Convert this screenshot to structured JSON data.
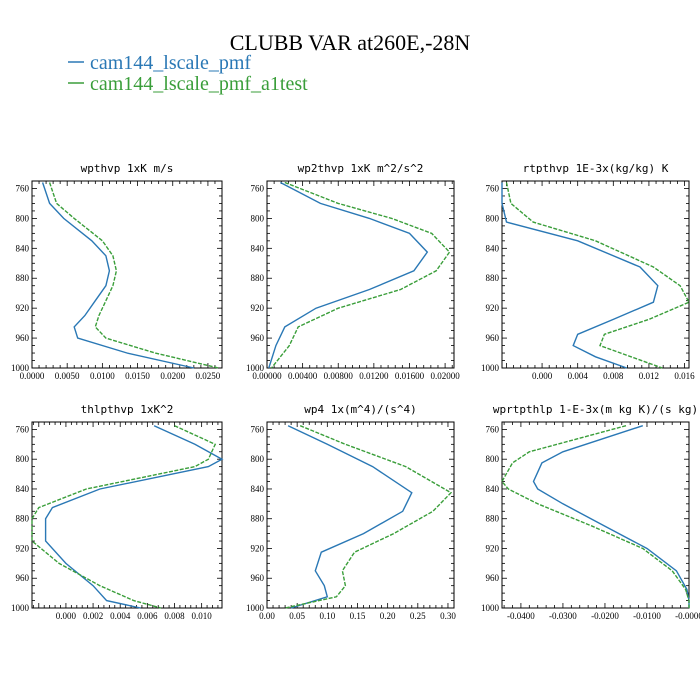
{
  "figure": {
    "title": "CLUBB VAR at260E,-28N",
    "legend": [
      {
        "label": "cam144_lscale_pmf",
        "color": "#2a78b5"
      },
      {
        "label": "cam144_lscale_pmf_a1test",
        "color": "#3a9e3a"
      }
    ]
  },
  "chart_data": [
    {
      "type": "line",
      "title": "wpthvp  1xK m/s",
      "xlim": [
        0,
        0.027
      ],
      "ylim": [
        1000,
        750
      ],
      "y_inverted": true,
      "xticks": [
        "0.0000",
        "0.0050",
        "0.0100",
        "0.0150",
        "0.0200",
        "0.0250"
      ],
      "xtick_values": [
        0,
        0.005,
        0.01,
        0.015,
        0.02,
        0.025
      ],
      "yticks": [
        760,
        800,
        840,
        880,
        920,
        960,
        1000
      ],
      "y": [
        752,
        780,
        800,
        830,
        850,
        870,
        890,
        910,
        930,
        945,
        960,
        980,
        1000
      ],
      "series": [
        {
          "values": [
            0.0015,
            0.0025,
            0.0045,
            0.0085,
            0.0105,
            0.011,
            0.0105,
            0.009,
            0.0075,
            0.006,
            0.0065,
            0.0135,
            0.023
          ]
        },
        {
          "values": [
            0.0025,
            0.0035,
            0.006,
            0.01,
            0.0115,
            0.012,
            0.0115,
            0.0105,
            0.0095,
            0.009,
            0.0105,
            0.0175,
            0.0265
          ]
        }
      ]
    },
    {
      "type": "line",
      "title": "wp2thvp  1xK m^2/s^2",
      "xlim": [
        0,
        0.021
      ],
      "ylim": [
        1000,
        750
      ],
      "y_inverted": true,
      "xticks": [
        "0.00000",
        "0.00400",
        "0.00800",
        "0.01200",
        "0.01600",
        "0.02000"
      ],
      "xtick_values": [
        0,
        0.004,
        0.008,
        0.012,
        0.016,
        0.02
      ],
      "yticks": [
        760,
        800,
        840,
        880,
        920,
        960,
        1000
      ],
      "y": [
        752,
        780,
        800,
        820,
        845,
        870,
        895,
        920,
        945,
        970,
        1000
      ],
      "series": [
        {
          "values": [
            0.0015,
            0.006,
            0.0115,
            0.016,
            0.018,
            0.0165,
            0.0115,
            0.0055,
            0.002,
            0.001,
            0.0002
          ]
        },
        {
          "values": [
            0.002,
            0.008,
            0.014,
            0.0185,
            0.0205,
            0.019,
            0.015,
            0.008,
            0.0035,
            0.0025,
            0.0005
          ]
        }
      ]
    },
    {
      "type": "line",
      "title": "rtpthvp  1E-3x(kg/kg) K",
      "xlim": [
        -0.0045,
        0.0165
      ],
      "ylim": [
        1000,
        750
      ],
      "y_inverted": true,
      "xticks": [
        "0.000",
        "0.004",
        "0.008",
        "0.012",
        "0.016"
      ],
      "xtick_values": [
        0,
        0.004,
        0.008,
        0.012,
        0.016
      ],
      "yticks": [
        760,
        800,
        840,
        880,
        920,
        960,
        1000
      ],
      "y": [
        752,
        780,
        805,
        830,
        865,
        890,
        912,
        935,
        955,
        970,
        985,
        1000
      ],
      "series": [
        {
          "values": [
            -0.0045,
            -0.0045,
            -0.004,
            0.004,
            0.011,
            0.013,
            0.0125,
            0.008,
            0.004,
            0.0035,
            0.006,
            0.0095
          ]
        },
        {
          "values": [
            -0.004,
            -0.0035,
            -0.001,
            0.006,
            0.0125,
            0.0155,
            0.0165,
            0.012,
            0.007,
            0.0065,
            0.01,
            0.0135
          ]
        }
      ]
    },
    {
      "type": "line",
      "title": "thlpthvp  1xK^2",
      "xlim": [
        -0.0025,
        0.0115
      ],
      "ylim": [
        1000,
        750
      ],
      "y_inverted": true,
      "xticks": [
        "0.000",
        "0.002",
        "0.004",
        "0.006",
        "0.008",
        "0.010"
      ],
      "xtick_values": [
        0,
        0.002,
        0.004,
        0.006,
        0.008,
        0.01
      ],
      "yticks": [
        760,
        800,
        840,
        880,
        920,
        960,
        1000
      ],
      "y": [
        755,
        780,
        800,
        810,
        840,
        865,
        880,
        910,
        940,
        970,
        990,
        1000
      ],
      "series": [
        {
          "values": [
            0.0065,
            0.0095,
            0.0115,
            0.0105,
            0.0025,
            -0.001,
            -0.0015,
            -0.0015,
            0.0,
            0.002,
            0.003,
            0.0055
          ]
        },
        {
          "values": [
            0.008,
            0.011,
            0.0105,
            0.0095,
            0.0015,
            -0.002,
            -0.0025,
            -0.0025,
            -0.0005,
            0.0025,
            0.005,
            0.007
          ]
        }
      ]
    },
    {
      "type": "line",
      "title": "wp4  1x(m^4)/(s^4)",
      "xlim": [
        0,
        0.31
      ],
      "ylim": [
        1000,
        750
      ],
      "y_inverted": true,
      "xticks": [
        "0.00",
        "0.05",
        "0.10",
        "0.15",
        "0.20",
        "0.25",
        "0.30"
      ],
      "xtick_values": [
        0,
        0.05,
        0.1,
        0.15,
        0.2,
        0.25,
        0.3
      ],
      "yticks": [
        760,
        800,
        840,
        880,
        920,
        960,
        1000
      ],
      "y": [
        755,
        780,
        810,
        845,
        870,
        900,
        925,
        950,
        970,
        985,
        1000
      ],
      "series": [
        {
          "values": [
            0.035,
            0.1,
            0.175,
            0.24,
            0.225,
            0.16,
            0.09,
            0.08,
            0.095,
            0.1,
            0.04
          ]
        },
        {
          "values": [
            0.055,
            0.13,
            0.23,
            0.305,
            0.275,
            0.21,
            0.145,
            0.125,
            0.13,
            0.115,
            0.03
          ]
        }
      ]
    },
    {
      "type": "line",
      "title": "wprtpthlp  1-E-3x(m kg K)/(s kg)",
      "xlim": [
        -0.0445,
        0
      ],
      "ylim": [
        1000,
        750
      ],
      "y_inverted": true,
      "xticks": [
        "-0.0400",
        "-0.0300",
        "-0.0200",
        "-0.0100",
        "-0.0000"
      ],
      "xtick_values": [
        -0.04,
        -0.03,
        -0.02,
        -0.01,
        0
      ],
      "yticks": [
        760,
        800,
        840,
        880,
        920,
        960,
        1000
      ],
      "y": [
        755,
        790,
        805,
        830,
        840,
        860,
        890,
        920,
        950,
        975,
        990,
        1000
      ],
      "series": [
        {
          "values": [
            -0.011,
            -0.03,
            -0.035,
            -0.037,
            -0.036,
            -0.03,
            -0.02,
            -0.01,
            -0.003,
            -0.0005,
            0.0,
            0.0
          ]
        },
        {
          "values": [
            -0.015,
            -0.038,
            -0.042,
            -0.0445,
            -0.043,
            -0.036,
            -0.023,
            -0.011,
            -0.004,
            -0.0008,
            0.0,
            0.0
          ]
        }
      ]
    }
  ]
}
